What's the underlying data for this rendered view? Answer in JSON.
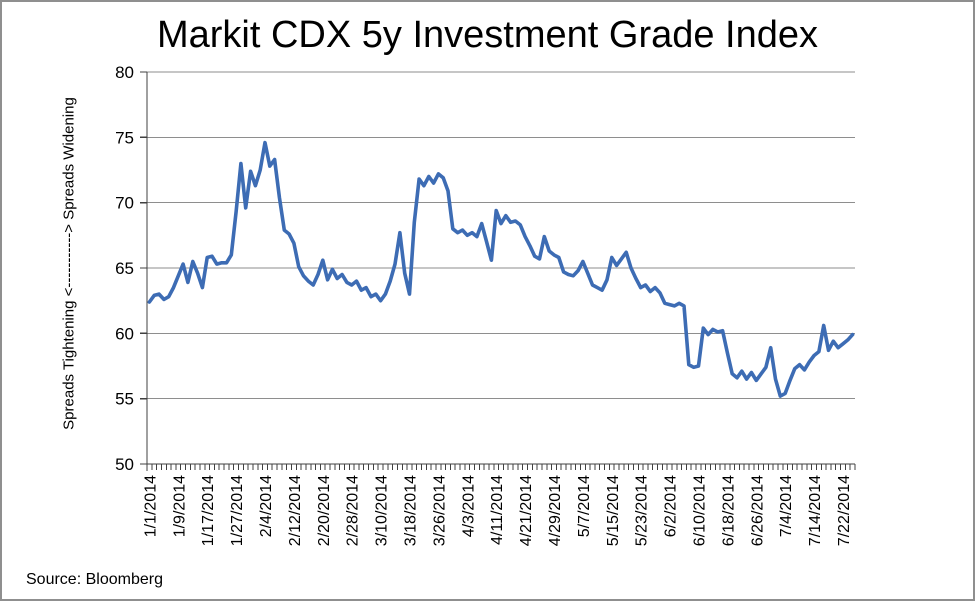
{
  "chart_data": {
    "type": "line",
    "title": "Markit CDX 5y Investment Grade Index",
    "ylabel": "Spreads Tightening <-----------> Spreads Widening",
    "xlabel": "",
    "source": "Source: Bloomberg",
    "ylim": [
      50,
      80
    ],
    "ytick_step": 5,
    "grid": true,
    "legend_position": "none",
    "line_color": "#3D6CB4",
    "axis_color": "#404040",
    "gridline_color": "#8e8e8e",
    "x_label_every": 6,
    "x_tick_labels": [
      "1/1/2014",
      "1/9/2014",
      "1/17/2014",
      "1/27/2014",
      "2/4/2014",
      "2/12/2014",
      "2/20/2014",
      "2/28/2014",
      "3/10/2014",
      "3/18/2014",
      "3/26/2014",
      "4/3/2014",
      "4/11/2014",
      "4/21/2014",
      "4/29/2014",
      "5/7/2014",
      "5/15/2014",
      "5/23/2014",
      "6/2/2014",
      "6/10/2014",
      "6/18/2014",
      "6/26/2014",
      "7/4/2014",
      "7/14/2014",
      "7/22/2014"
    ],
    "values": [
      62.4,
      62.9,
      63.0,
      62.6,
      62.8,
      63.5,
      64.4,
      65.3,
      63.9,
      65.5,
      64.6,
      63.5,
      65.8,
      65.9,
      65.3,
      65.4,
      65.4,
      66.0,
      69.3,
      73.0,
      69.6,
      72.4,
      71.3,
      72.5,
      74.6,
      72.8,
      73.3,
      70.4,
      67.9,
      67.6,
      66.9,
      65.1,
      64.4,
      64.0,
      63.7,
      64.5,
      65.6,
      64.1,
      64.9,
      64.2,
      64.5,
      63.9,
      63.7,
      64.0,
      63.3,
      63.5,
      62.8,
      63.0,
      62.5,
      63.0,
      64.0,
      65.3,
      67.7,
      64.6,
      63.0,
      68.5,
      71.8,
      71.3,
      72.0,
      71.5,
      72.2,
      71.9,
      70.9,
      68.0,
      67.7,
      67.9,
      67.5,
      67.7,
      67.4,
      68.4,
      67.0,
      65.6,
      69.4,
      68.4,
      69.0,
      68.5,
      68.6,
      68.3,
      67.4,
      66.7,
      65.9,
      65.7,
      67.4,
      66.3,
      66.0,
      65.8,
      64.7,
      64.5,
      64.4,
      64.8,
      65.5,
      64.6,
      63.7,
      63.5,
      63.3,
      64.1,
      65.8,
      65.2,
      65.7,
      66.2,
      65.0,
      64.2,
      63.5,
      63.7,
      63.2,
      63.5,
      63.1,
      62.3,
      62.2,
      62.1,
      62.3,
      62.1,
      57.6,
      57.4,
      57.5,
      60.4,
      59.9,
      60.3,
      60.1,
      60.2,
      58.5,
      56.9,
      56.6,
      57.1,
      56.5,
      57.0,
      56.4,
      56.9,
      57.4,
      58.9,
      56.5,
      55.2,
      55.4,
      56.4,
      57.3,
      57.6,
      57.2,
      57.8,
      58.3,
      58.6,
      60.6,
      58.7,
      59.4,
      58.9,
      59.2,
      59.5,
      59.9
    ]
  }
}
